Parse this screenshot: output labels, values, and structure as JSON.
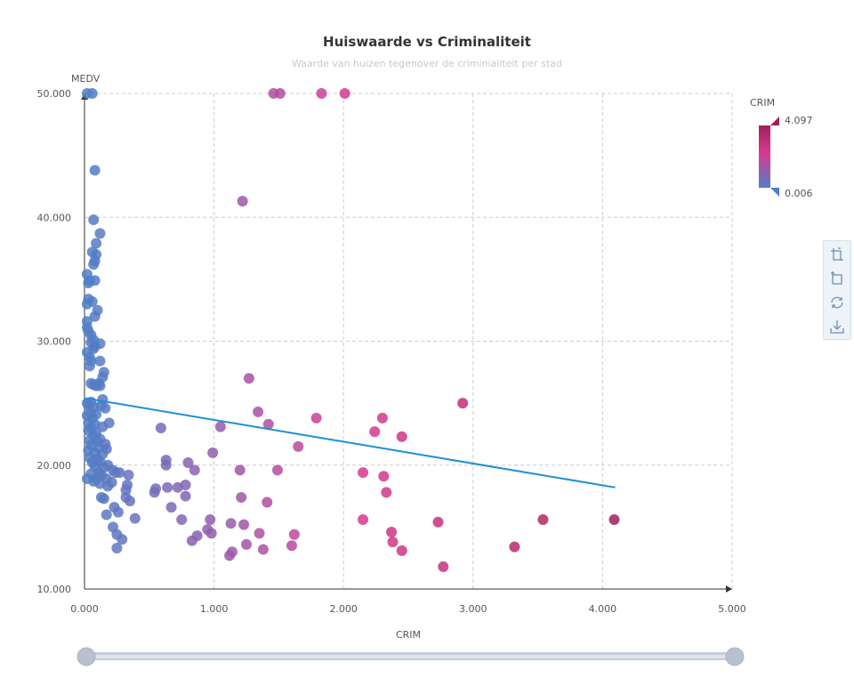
{
  "chart_data": {
    "type": "scatter",
    "title": "Huiswaarde vs Criminaliteit",
    "subtitle": "Waarde van huizen tegenover de criminialiteit per stad",
    "xlabel": "CRIM",
    "ylabel": "MEDV",
    "xlim": [
      0,
      5
    ],
    "ylim": [
      10,
      50
    ],
    "xticks": [
      "0.000",
      "1.000",
      "2.000",
      "3.000",
      "4.000",
      "5.000"
    ],
    "yticks": [
      "10.000",
      "20.000",
      "30.000",
      "40.000",
      "50.000"
    ],
    "grid": true,
    "visualMap": {
      "name": "CRIM",
      "min": 0.006,
      "max": 4.097,
      "min_label": "0.006",
      "max_label": "4.097",
      "colors": [
        "#4f7fc6",
        "#d93a92",
        "#a0205a"
      ]
    },
    "trendline": {
      "x": [
        0.006,
        4.097
      ],
      "y": [
        25.4,
        18.2
      ],
      "color": "#1d8ed6"
    },
    "points": [
      [
        0.02,
        50.0
      ],
      [
        0.06,
        50.0
      ],
      [
        1.46,
        50.0
      ],
      [
        1.51,
        50.0
      ],
      [
        1.83,
        50.0
      ],
      [
        2.01,
        50.0
      ],
      [
        0.08,
        43.8
      ],
      [
        1.22,
        41.3
      ],
      [
        0.07,
        39.8
      ],
      [
        0.12,
        38.7
      ],
      [
        0.09,
        37.9
      ],
      [
        0.06,
        37.2
      ],
      [
        0.09,
        37.0
      ],
      [
        0.08,
        36.5
      ],
      [
        0.07,
        36.2
      ],
      [
        0.02,
        35.4
      ],
      [
        0.04,
        34.9
      ],
      [
        0.08,
        34.9
      ],
      [
        0.03,
        34.7
      ],
      [
        0.03,
        33.4
      ],
      [
        0.06,
        33.2
      ],
      [
        0.02,
        33.0
      ],
      [
        0.1,
        32.5
      ],
      [
        0.08,
        32.0
      ],
      [
        0.02,
        31.6
      ],
      [
        0.02,
        31.1
      ],
      [
        0.03,
        30.8
      ],
      [
        0.05,
        30.5
      ],
      [
        0.07,
        30.1
      ],
      [
        0.05,
        29.9
      ],
      [
        0.12,
        29.8
      ],
      [
        0.08,
        29.6
      ],
      [
        0.07,
        29.4
      ],
      [
        0.02,
        29.1
      ],
      [
        0.04,
        28.7
      ],
      [
        0.05,
        28.4
      ],
      [
        0.12,
        28.4
      ],
      [
        0.04,
        28.0
      ],
      [
        0.15,
        27.5
      ],
      [
        0.14,
        27.1
      ],
      [
        1.27,
        27.0
      ],
      [
        0.05,
        26.6
      ],
      [
        0.09,
        26.4
      ],
      [
        0.07,
        26.5
      ],
      [
        0.11,
        26.6
      ],
      [
        0.12,
        26.4
      ],
      [
        0.05,
        25.1
      ],
      [
        0.14,
        25.3
      ],
      [
        0.03,
        24.8
      ],
      [
        0.02,
        25.0
      ],
      [
        0.07,
        24.7
      ],
      [
        0.13,
        24.8
      ],
      [
        0.16,
        24.6
      ],
      [
        2.92,
        25.0
      ],
      [
        1.34,
        24.3
      ],
      [
        0.02,
        24.0
      ],
      [
        0.05,
        24.2
      ],
      [
        0.09,
        24.1
      ],
      [
        0.06,
        23.8
      ],
      [
        1.79,
        23.8
      ],
      [
        2.3,
        23.8
      ],
      [
        0.03,
        23.4
      ],
      [
        0.08,
        23.3
      ],
      [
        0.19,
        23.4
      ],
      [
        1.42,
        23.3
      ],
      [
        0.14,
        23.1
      ],
      [
        0.05,
        23.0
      ],
      [
        1.05,
        23.1
      ],
      [
        0.59,
        23.0
      ],
      [
        0.03,
        22.8
      ],
      [
        0.09,
        22.6
      ],
      [
        2.24,
        22.7
      ],
      [
        0.07,
        22.4
      ],
      [
        2.45,
        22.3
      ],
      [
        0.12,
        22.1
      ],
      [
        0.04,
        22.0
      ],
      [
        0.1,
        21.9
      ],
      [
        0.16,
        21.7
      ],
      [
        0.05,
        21.6
      ],
      [
        0.11,
        21.4
      ],
      [
        0.17,
        21.3
      ],
      [
        1.65,
        21.5
      ],
      [
        0.03,
        21.2
      ],
      [
        0.08,
        21.0
      ],
      [
        0.14,
        20.9
      ],
      [
        0.99,
        21.0
      ],
      [
        0.04,
        20.6
      ],
      [
        0.1,
        20.5
      ],
      [
        0.06,
        20.2
      ],
      [
        0.12,
        20.3
      ],
      [
        0.63,
        20.4
      ],
      [
        0.63,
        20.0
      ],
      [
        0.8,
        20.2
      ],
      [
        0.18,
        20.0
      ],
      [
        0.08,
        19.9
      ],
      [
        0.15,
        19.8
      ],
      [
        0.22,
        19.6
      ],
      [
        0.85,
        19.6
      ],
      [
        1.2,
        19.6
      ],
      [
        1.49,
        19.6
      ],
      [
        0.11,
        19.4
      ],
      [
        0.24,
        19.4
      ],
      [
        0.27,
        19.4
      ],
      [
        2.15,
        19.4
      ],
      [
        0.05,
        19.3
      ],
      [
        0.13,
        19.2
      ],
      [
        0.34,
        19.2
      ],
      [
        2.31,
        19.1
      ],
      [
        0.02,
        18.9
      ],
      [
        0.09,
        18.9
      ],
      [
        0.17,
        18.9
      ],
      [
        0.21,
        18.6
      ],
      [
        0.12,
        18.5
      ],
      [
        0.33,
        18.4
      ],
      [
        0.78,
        18.4
      ],
      [
        0.07,
        18.7
      ],
      [
        0.18,
        18.3
      ],
      [
        0.64,
        18.2
      ],
      [
        0.72,
        18.2
      ],
      [
        0.55,
        18.1
      ],
      [
        0.32,
        18.0
      ],
      [
        0.54,
        17.8
      ],
      [
        2.33,
        17.8
      ],
      [
        0.13,
        17.4
      ],
      [
        0.15,
        17.3
      ],
      [
        0.32,
        17.4
      ],
      [
        0.78,
        17.5
      ],
      [
        1.21,
        17.4
      ],
      [
        0.35,
        17.1
      ],
      [
        1.41,
        17.0
      ],
      [
        0.23,
        16.6
      ],
      [
        0.67,
        16.6
      ],
      [
        0.26,
        16.2
      ],
      [
        0.17,
        16.0
      ],
      [
        0.39,
        15.7
      ],
      [
        0.75,
        15.6
      ],
      [
        0.97,
        15.6
      ],
      [
        2.15,
        15.6
      ],
      [
        3.54,
        15.6
      ],
      [
        4.09,
        15.6
      ],
      [
        1.13,
        15.3
      ],
      [
        1.23,
        15.2
      ],
      [
        2.73,
        15.4
      ],
      [
        0.22,
        15.0
      ],
      [
        0.95,
        14.8
      ],
      [
        1.35,
        14.5
      ],
      [
        2.37,
        14.6
      ],
      [
        0.98,
        14.5
      ],
      [
        0.87,
        14.3
      ],
      [
        1.62,
        14.4
      ],
      [
        0.25,
        14.4
      ],
      [
        0.29,
        14.0
      ],
      [
        0.83,
        13.9
      ],
      [
        2.38,
        13.8
      ],
      [
        1.25,
        13.6
      ],
      [
        1.6,
        13.5
      ],
      [
        3.32,
        13.4
      ],
      [
        0.25,
        13.3
      ],
      [
        1.38,
        13.2
      ],
      [
        2.45,
        13.1
      ],
      [
        1.14,
        13.0
      ],
      [
        1.12,
        12.7
      ],
      [
        2.77,
        11.8
      ]
    ]
  },
  "slider": {
    "start": 0,
    "end": 100
  },
  "toolbox": {
    "icons": [
      "zoom-icon",
      "zoom-reset-icon",
      "restore-icon",
      "save-image-icon"
    ]
  }
}
